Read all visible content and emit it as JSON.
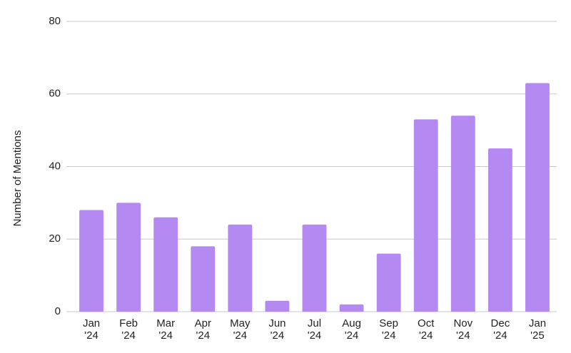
{
  "chart_data": {
    "type": "bar",
    "y_label": "Number of Mentions",
    "categories": [
      "Jan '24",
      "Feb '24",
      "Mar '24",
      "Apr '24",
      "May '24",
      "Jun '24",
      "Jul '24",
      "Aug '24",
      "Sep '24",
      "Oct '24",
      "Nov '24",
      "Dec '24",
      "Jan '25"
    ],
    "values": [
      28,
      30,
      26,
      18,
      24,
      3,
      24,
      2,
      16,
      53,
      54,
      45,
      63
    ],
    "color": "#b589f2",
    "ylim": [
      0,
      80
    ],
    "yticks": [
      0,
      20,
      40,
      60,
      80
    ],
    "grid": true
  }
}
